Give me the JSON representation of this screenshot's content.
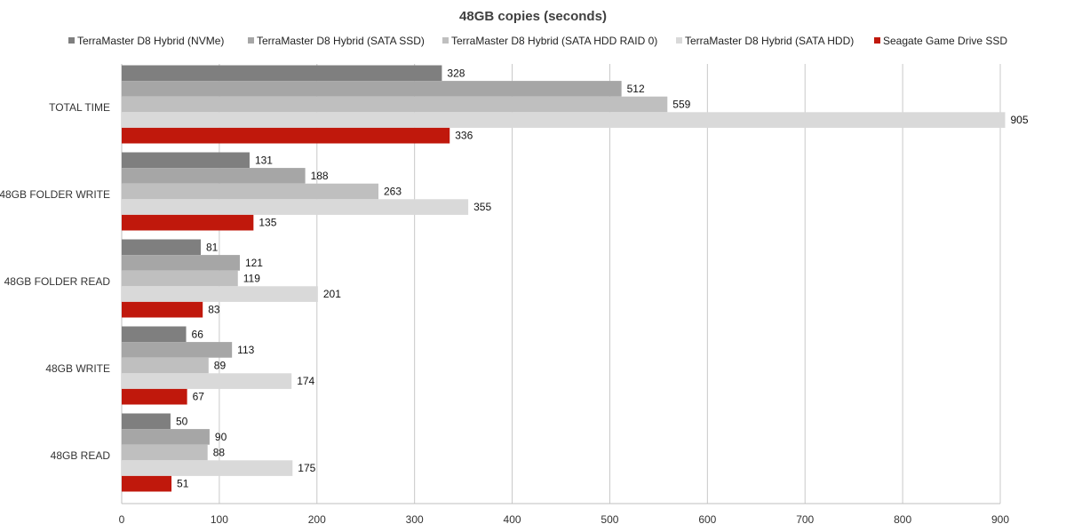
{
  "chart_data": {
    "type": "bar",
    "orientation": "horizontal",
    "title": "48GB copies (seconds)",
    "xlabel": "",
    "ylabel": "",
    "xlim": [
      0,
      900
    ],
    "x_ticks": [
      "0",
      "100",
      "200",
      "300",
      "400",
      "500",
      "600",
      "700",
      "800",
      "900"
    ],
    "grid": "vertical",
    "legend": "top",
    "categories": [
      "TOTAL TIME",
      "48GB FOLDER WRITE",
      "48GB FOLDER READ",
      "48GB WRITE",
      "48GB READ"
    ],
    "series": [
      {
        "name": "TerraMaster D8 Hybrid (NVMe)",
        "color": "#7f7f7f",
        "values": [
          328,
          131,
          81,
          66,
          50
        ]
      },
      {
        "name": "TerraMaster D8 Hybrid (SATA SSD)",
        "color": "#a6a6a6",
        "values": [
          512,
          188,
          121,
          113,
          90
        ]
      },
      {
        "name": "TerraMaster D8 Hybrid (SATA HDD RAID 0)",
        "color": "#bfbfbf",
        "values": [
          559,
          263,
          119,
          89,
          88
        ]
      },
      {
        "name": "TerraMaster D8 Hybrid (SATA HDD)",
        "color": "#d9d9d9",
        "values": [
          905,
          355,
          201,
          174,
          175
        ]
      },
      {
        "name": "Seagate Game Drive SSD",
        "color": "#c0180c",
        "values": [
          336,
          135,
          83,
          67,
          51
        ]
      }
    ]
  }
}
